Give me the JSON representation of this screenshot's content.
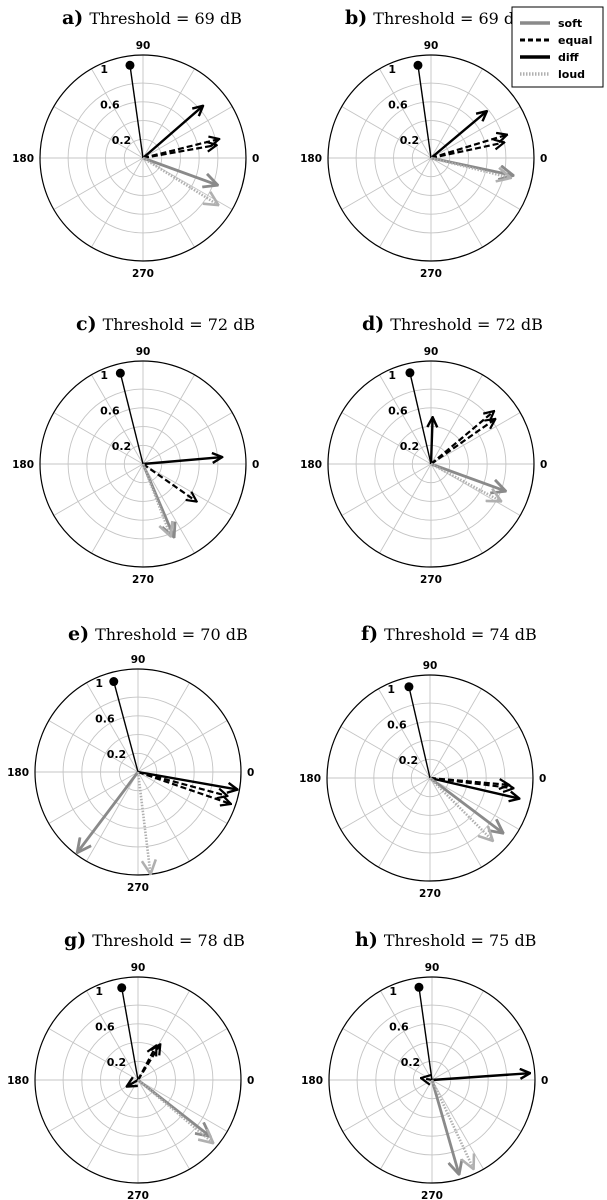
{
  "legend": {
    "position": "top-right",
    "entries": [
      {
        "name": "soft",
        "color": "#8a8a8a",
        "dash": "solid"
      },
      {
        "name": "equal",
        "color": "#000000",
        "dash": "dashed"
      },
      {
        "name": "diff",
        "color": "#000000",
        "dash": "solid"
      },
      {
        "name": "loud",
        "color": "#b0b0b0",
        "dash": "dotted"
      }
    ]
  },
  "chart_data": [
    {
      "type": "polar",
      "panel": "a)",
      "title": "Threshold = 69 dB",
      "angle_labels": [
        "90",
        "180",
        "270",
        "0"
      ],
      "radial_labels": [
        "0.2",
        "0.6",
        "1"
      ],
      "rlim": [
        0,
        1.1
      ],
      "grid": true,
      "reference": {
        "angle_deg": 98,
        "r": 1.0
      },
      "series": [
        {
          "name": "diff",
          "angle_deg": 41,
          "r": 0.85
        },
        {
          "name": "equal",
          "angle_deg": 14,
          "r": 0.84
        },
        {
          "name": "equal",
          "angle_deg": 10,
          "r": 0.8
        },
        {
          "name": "soft",
          "angle_deg": -20,
          "r": 0.85
        },
        {
          "name": "loud",
          "angle_deg": -32,
          "r": 0.95
        }
      ]
    },
    {
      "type": "polar",
      "panel": "b)",
      "title": "Threshold = 69 dB",
      "angle_labels": [
        "90",
        "180",
        "270",
        "0"
      ],
      "radial_labels": [
        "0.2",
        "0.6",
        "1"
      ],
      "rlim": [
        0,
        1.1
      ],
      "grid": true,
      "reference": {
        "angle_deg": 98,
        "r": 1.0
      },
      "series": [
        {
          "name": "diff",
          "angle_deg": 40,
          "r": 0.78
        },
        {
          "name": "equal",
          "angle_deg": 17,
          "r": 0.85
        },
        {
          "name": "equal",
          "angle_deg": 12,
          "r": 0.8
        },
        {
          "name": "soft",
          "angle_deg": -12,
          "r": 0.9
        },
        {
          "name": "loud",
          "angle_deg": -14,
          "r": 0.88
        }
      ]
    },
    {
      "type": "polar",
      "panel": "c)",
      "title": "Threshold = 72 dB",
      "angle_labels": [
        "90",
        "180",
        "270",
        "0"
      ],
      "radial_labels": [
        "0.2",
        "0.6",
        "1"
      ],
      "rlim": [
        0,
        1.1
      ],
      "grid": true,
      "reference": {
        "angle_deg": 104,
        "r": 1.0
      },
      "series": [
        {
          "name": "diff",
          "angle_deg": 5,
          "r": 0.85
        },
        {
          "name": "equal",
          "angle_deg": -35,
          "r": 0.7
        },
        {
          "name": "soft",
          "angle_deg": -67,
          "r": 0.85
        },
        {
          "name": "loud",
          "angle_deg": -69,
          "r": 0.83
        }
      ]
    },
    {
      "type": "polar",
      "panel": "d)",
      "title": "Threshold = 72 dB",
      "angle_labels": [
        "90",
        "180",
        "270",
        "0"
      ],
      "radial_labels": [
        "0.2",
        "0.6",
        "1"
      ],
      "rlim": [
        0,
        1.1
      ],
      "grid": true,
      "reference": {
        "angle_deg": 103,
        "r": 1.0
      },
      "series": [
        {
          "name": "diff",
          "angle_deg": 88,
          "r": 0.5
        },
        {
          "name": "equal",
          "angle_deg": 40,
          "r": 0.88
        },
        {
          "name": "equal",
          "angle_deg": 35,
          "r": 0.84
        },
        {
          "name": "soft",
          "angle_deg": -20,
          "r": 0.85
        },
        {
          "name": "loud",
          "angle_deg": -28,
          "r": 0.85
        }
      ]
    },
    {
      "type": "polar",
      "panel": "e)",
      "title": "Threshold = 70 dB",
      "angle_labels": [
        "90",
        "180",
        "270",
        "0"
      ],
      "radial_labels": [
        "0.2",
        "0.6",
        "1"
      ],
      "rlim": [
        0,
        1.1
      ],
      "grid": true,
      "reference": {
        "angle_deg": 105,
        "r": 1.0
      },
      "series": [
        {
          "name": "diff",
          "angle_deg": -10,
          "r": 1.08
        },
        {
          "name": "equal",
          "angle_deg": -19,
          "r": 1.05
        },
        {
          "name": "equal",
          "angle_deg": -15,
          "r": 0.99
        },
        {
          "name": "soft",
          "angle_deg": -127,
          "r": 1.08
        },
        {
          "name": "loud",
          "angle_deg": -83,
          "r": 1.1
        }
      ]
    },
    {
      "type": "polar",
      "panel": "f)",
      "title": "Threshold = 74 dB",
      "angle_labels": [
        "90",
        "180",
        "270",
        "0"
      ],
      "radial_labels": [
        "0.2",
        "0.6",
        "1"
      ],
      "rlim": [
        0,
        1.1
      ],
      "grid": true,
      "reference": {
        "angle_deg": 103,
        "r": 1.0
      },
      "series": [
        {
          "name": "diff",
          "angle_deg": -13,
          "r": 0.98
        },
        {
          "name": "equal",
          "angle_deg": -7,
          "r": 0.9
        },
        {
          "name": "equal",
          "angle_deg": -5,
          "r": 0.85
        },
        {
          "name": "soft",
          "angle_deg": -37,
          "r": 0.98
        },
        {
          "name": "loud",
          "angle_deg": -45,
          "r": 0.95
        }
      ]
    },
    {
      "type": "polar",
      "panel": "g)",
      "title": "Threshold = 78 dB",
      "angle_labels": [
        "90",
        "180",
        "270",
        "0"
      ],
      "radial_labels": [
        "0.2",
        "0.6",
        "1"
      ],
      "rlim": [
        0,
        1.1
      ],
      "grid": true,
      "reference": {
        "angle_deg": 100,
        "r": 1.0
      },
      "series": [
        {
          "name": "diff",
          "angle_deg": -150,
          "r": 0.14
        },
        {
          "name": "equal",
          "angle_deg": 58,
          "r": 0.45
        },
        {
          "name": "equal",
          "angle_deg": 62,
          "r": 0.42
        },
        {
          "name": "soft",
          "angle_deg": -38,
          "r": 0.98
        },
        {
          "name": "loud",
          "angle_deg": -40,
          "r": 1.05
        }
      ]
    },
    {
      "type": "polar",
      "panel": "h)",
      "title": "Threshold = 75 dB",
      "angle_labels": [
        "90",
        "180",
        "270",
        "0"
      ],
      "radial_labels": [
        "0.2",
        "0.6",
        "1"
      ],
      "rlim": [
        0,
        1.1
      ],
      "grid": true,
      "reference": {
        "angle_deg": 98,
        "r": 1.0
      },
      "series": [
        {
          "name": "diff",
          "angle_deg": 4,
          "r": 1.05
        },
        {
          "name": "equal",
          "angle_deg": 170,
          "r": 0.12
        },
        {
          "name": "soft",
          "angle_deg": -74,
          "r": 1.05
        },
        {
          "name": "loud",
          "angle_deg": -65,
          "r": 1.05
        }
      ]
    }
  ]
}
